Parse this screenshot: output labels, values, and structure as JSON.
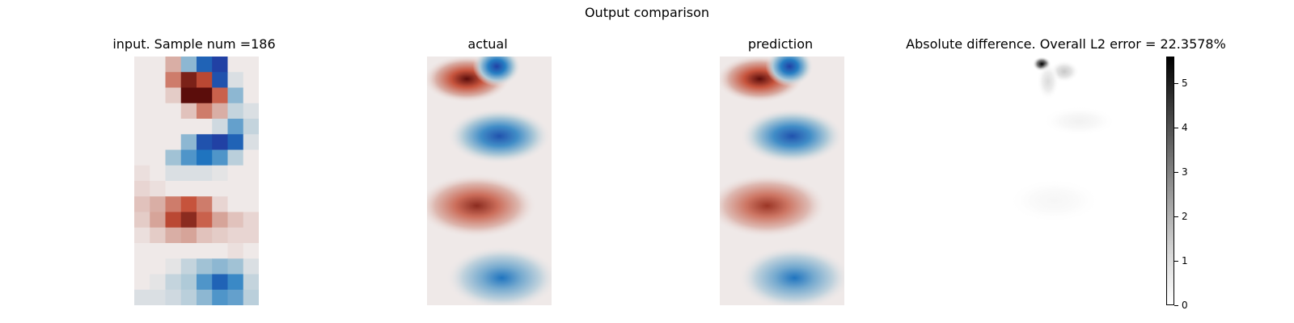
{
  "figure": {
    "suptitle": "Output comparison"
  },
  "panels": [
    {
      "title": "input. Sample num =186"
    },
    {
      "title": "actual"
    },
    {
      "title": "prediction"
    },
    {
      "title": "Absolute difference. Overall L2 error = 22.3578%"
    }
  ],
  "chart_data": {
    "type": "heatmap",
    "title": "Output comparison",
    "input_grid": {
      "rows": 16,
      "cols": 8,
      "values": [
        [
          0.0,
          0.0,
          0.3,
          -0.4,
          -0.8,
          -1.0,
          0.0,
          0.0
        ],
        [
          0.0,
          0.0,
          0.5,
          0.9,
          0.7,
          -0.9,
          -0.1,
          0.0
        ],
        [
          0.0,
          0.0,
          0.15,
          1.0,
          1.0,
          0.6,
          -0.4,
          0.0
        ],
        [
          0.0,
          0.0,
          0.0,
          0.2,
          0.5,
          0.3,
          -0.2,
          -0.1
        ],
        [
          0.0,
          0.0,
          0.0,
          0.0,
          0.0,
          -0.15,
          -0.5,
          -0.2
        ],
        [
          0.0,
          0.0,
          0.0,
          -0.4,
          -0.9,
          -1.0,
          -0.8,
          -0.1
        ],
        [
          0.0,
          0.0,
          -0.35,
          -0.55,
          -0.7,
          -0.55,
          -0.25,
          0.0
        ],
        [
          0.05,
          0.0,
          -0.1,
          -0.1,
          -0.1,
          -0.05,
          0.0,
          0.0
        ],
        [
          0.1,
          0.05,
          0.0,
          0.0,
          0.0,
          0.0,
          0.0,
          0.0
        ],
        [
          0.2,
          0.3,
          0.5,
          0.65,
          0.5,
          0.1,
          0.0,
          0.0
        ],
        [
          0.15,
          0.35,
          0.7,
          0.85,
          0.6,
          0.35,
          0.2,
          0.1
        ],
        [
          0.05,
          0.15,
          0.3,
          0.35,
          0.2,
          0.15,
          0.1,
          0.1
        ],
        [
          0.0,
          0.0,
          0.0,
          0.0,
          0.0,
          0.0,
          0.05,
          0.0
        ],
        [
          0.0,
          0.0,
          -0.05,
          -0.2,
          -0.35,
          -0.4,
          -0.35,
          -0.1
        ],
        [
          0.0,
          -0.05,
          -0.2,
          -0.3,
          -0.55,
          -0.8,
          -0.6,
          -0.2
        ],
        [
          -0.1,
          -0.1,
          -0.15,
          -0.25,
          -0.4,
          -0.55,
          -0.5,
          -0.25
        ]
      ]
    },
    "actual_blobs": [
      {
        "cx": 0.32,
        "cy": 0.09,
        "rx": 0.22,
        "ry": 0.06,
        "sign": 1,
        "amp": 1.0
      },
      {
        "cx": 0.56,
        "cy": 0.04,
        "rx": 0.12,
        "ry": 0.05,
        "sign": -1,
        "amp": 1.0
      },
      {
        "cx": 0.58,
        "cy": 0.32,
        "rx": 0.26,
        "ry": 0.07,
        "sign": -1,
        "amp": 0.9
      },
      {
        "cx": 0.4,
        "cy": 0.6,
        "rx": 0.3,
        "ry": 0.08,
        "sign": 1,
        "amp": 0.85
      },
      {
        "cx": 0.6,
        "cy": 0.89,
        "rx": 0.28,
        "ry": 0.08,
        "sign": -1,
        "amp": 0.7
      }
    ],
    "prediction_blobs": [
      {
        "cx": 0.32,
        "cy": 0.09,
        "rx": 0.22,
        "ry": 0.06,
        "sign": 1,
        "amp": 1.0
      },
      {
        "cx": 0.56,
        "cy": 0.04,
        "rx": 0.12,
        "ry": 0.05,
        "sign": -1,
        "amp": 1.0
      },
      {
        "cx": 0.58,
        "cy": 0.32,
        "rx": 0.26,
        "ry": 0.07,
        "sign": -1,
        "amp": 0.9
      },
      {
        "cx": 0.38,
        "cy": 0.6,
        "rx": 0.3,
        "ry": 0.08,
        "sign": 1,
        "amp": 0.8
      },
      {
        "cx": 0.6,
        "cy": 0.89,
        "rx": 0.28,
        "ry": 0.08,
        "sign": -1,
        "amp": 0.7
      }
    ],
    "difference_blobs": [
      {
        "cx": 0.3,
        "cy": 0.03,
        "rx": 0.05,
        "ry": 0.02,
        "amp": 5.6
      },
      {
        "cx": 0.48,
        "cy": 0.06,
        "rx": 0.08,
        "ry": 0.03,
        "amp": 1.2
      },
      {
        "cx": 0.35,
        "cy": 0.1,
        "rx": 0.06,
        "ry": 0.05,
        "amp": 0.8
      },
      {
        "cx": 0.6,
        "cy": 0.26,
        "rx": 0.2,
        "ry": 0.04,
        "amp": 0.3
      },
      {
        "cx": 0.4,
        "cy": 0.58,
        "rx": 0.25,
        "ry": 0.06,
        "amp": 0.2
      }
    ],
    "colorbar": {
      "label": "",
      "range": [
        0,
        5.6
      ],
      "ticks": [
        {
          "value": 0,
          "label": "0"
        },
        {
          "value": 1,
          "label": "1"
        },
        {
          "value": 2,
          "label": "2"
        },
        {
          "value": 3,
          "label": "3"
        },
        {
          "value": 4,
          "label": "4"
        },
        {
          "value": 5,
          "label": "5"
        }
      ]
    },
    "colormap_diverging": [
      "#2141a4",
      "#1f7ac2",
      "#a8c6d6",
      "#efe9e8",
      "#d7a89e",
      "#c54f37",
      "#5b0d0b"
    ],
    "colormap_sequential": [
      "#ffffff",
      "#000000"
    ]
  }
}
